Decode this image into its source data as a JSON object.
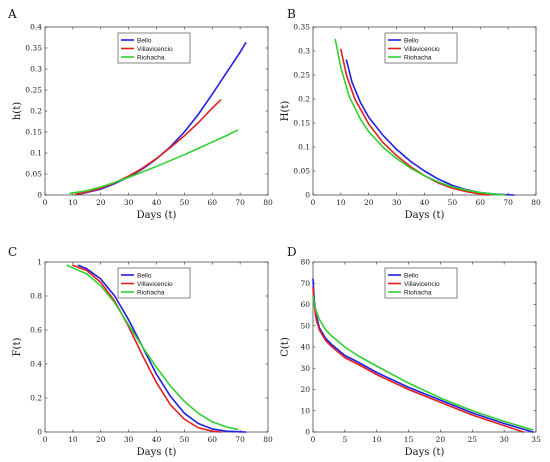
{
  "chart_data": [
    {
      "panel": "A",
      "type": "line",
      "xlabel": "Days (t)",
      "ylabel": "h(t)",
      "xlim": [
        0,
        80
      ],
      "ylim": [
        0,
        0.4
      ],
      "xticks": [
        "0",
        "10",
        "20",
        "30",
        "40",
        "50",
        "60",
        "70",
        "80"
      ],
      "yticks": [
        "0",
        "0.05",
        "0.1",
        "0.15",
        "0.2",
        "0.25",
        "0.3",
        "0.35",
        "0.4"
      ],
      "legend": "top-center",
      "series": [
        {
          "name": "Bello",
          "color": "#2020e0",
          "x": [
            12,
            15,
            20,
            25,
            30,
            35,
            40,
            45,
            50,
            55,
            60,
            65,
            70,
            72
          ],
          "y": [
            0.002,
            0.006,
            0.014,
            0.027,
            0.043,
            0.062,
            0.086,
            0.115,
            0.15,
            0.192,
            0.24,
            0.29,
            0.34,
            0.362
          ]
        },
        {
          "name": "Villavicencio",
          "color": "#e02020",
          "x": [
            11,
            15,
            20,
            25,
            30,
            35,
            40,
            45,
            50,
            55,
            60,
            63
          ],
          "y": [
            0.002,
            0.007,
            0.016,
            0.029,
            0.045,
            0.064,
            0.087,
            0.113,
            0.141,
            0.172,
            0.207,
            0.226
          ]
        },
        {
          "name": "Riohacha",
          "color": "#30d030",
          "x": [
            9,
            15,
            20,
            25,
            30,
            35,
            40,
            45,
            50,
            55,
            60,
            65,
            69
          ],
          "y": [
            0.004,
            0.01,
            0.019,
            0.03,
            0.042,
            0.055,
            0.068,
            0.082,
            0.096,
            0.111,
            0.126,
            0.141,
            0.154
          ]
        }
      ]
    },
    {
      "panel": "B",
      "type": "line",
      "xlabel": "Days (t)",
      "ylabel": "H(t)",
      "xlim": [
        0,
        80
      ],
      "ylim": [
        0,
        0.35
      ],
      "xticks": [
        "0",
        "10",
        "20",
        "30",
        "40",
        "50",
        "60",
        "70",
        "80"
      ],
      "yticks": [
        "0",
        "0.05",
        "0.1",
        "0.15",
        "0.2",
        "0.25",
        "0.3",
        "0.35"
      ],
      "legend": "top-center",
      "series": [
        {
          "name": "Bello",
          "color": "#2020e0",
          "x": [
            12,
            14,
            17,
            20,
            25,
            30,
            35,
            40,
            45,
            50,
            55,
            60,
            65,
            70,
            72
          ],
          "y": [
            0.281,
            0.235,
            0.193,
            0.162,
            0.125,
            0.095,
            0.07,
            0.05,
            0.033,
            0.02,
            0.011,
            0.005,
            0.002,
            0.0005,
            0.0
          ]
        },
        {
          "name": "Villavicencio",
          "color": "#e02020",
          "x": [
            10,
            12,
            15,
            20,
            25,
            30,
            35,
            40,
            45,
            50,
            55,
            60,
            63
          ],
          "y": [
            0.303,
            0.25,
            0.2,
            0.148,
            0.11,
            0.082,
            0.059,
            0.04,
            0.025,
            0.014,
            0.007,
            0.002,
            0.0
          ]
        },
        {
          "name": "Riohacha",
          "color": "#30d030",
          "x": [
            8,
            10,
            13,
            17,
            20,
            25,
            30,
            35,
            40,
            45,
            50,
            55,
            60,
            65,
            69
          ],
          "y": [
            0.324,
            0.265,
            0.205,
            0.158,
            0.132,
            0.1,
            0.076,
            0.056,
            0.04,
            0.027,
            0.017,
            0.01,
            0.005,
            0.002,
            0.0
          ]
        }
      ]
    },
    {
      "panel": "C",
      "type": "line",
      "xlabel": "Days (t)",
      "ylabel": "F(t)",
      "xlim": [
        0,
        80
      ],
      "ylim": [
        0,
        1
      ],
      "xticks": [
        "0",
        "10",
        "20",
        "30",
        "40",
        "50",
        "60",
        "70",
        "80"
      ],
      "yticks": [
        "0",
        "0.2",
        "0.4",
        "0.6",
        "0.8",
        "1"
      ],
      "legend": "top-center",
      "series": [
        {
          "name": "Bello",
          "color": "#2020e0",
          "x": [
            12,
            15,
            20,
            25,
            30,
            35,
            40,
            45,
            50,
            55,
            60,
            65,
            70,
            72
          ],
          "y": [
            0.98,
            0.96,
            0.9,
            0.8,
            0.66,
            0.5,
            0.34,
            0.21,
            0.11,
            0.05,
            0.018,
            0.005,
            0.001,
            0.0
          ]
        },
        {
          "name": "Villavicencio",
          "color": "#e02020",
          "x": [
            10,
            15,
            20,
            25,
            30,
            35,
            40,
            45,
            50,
            55,
            60,
            63
          ],
          "y": [
            0.98,
            0.95,
            0.88,
            0.77,
            0.62,
            0.45,
            0.29,
            0.16,
            0.075,
            0.025,
            0.005,
            0.0
          ]
        },
        {
          "name": "Riohacha",
          "color": "#30d030",
          "x": [
            8,
            10,
            15,
            20,
            25,
            30,
            35,
            40,
            45,
            50,
            55,
            60,
            65,
            69
          ],
          "y": [
            0.98,
            0.965,
            0.93,
            0.86,
            0.76,
            0.63,
            0.5,
            0.38,
            0.27,
            0.18,
            0.11,
            0.06,
            0.03,
            0.015
          ]
        }
      ]
    },
    {
      "panel": "D",
      "type": "line",
      "xlabel": "Days (t)",
      "ylabel": "C(t)",
      "xlim": [
        0,
        35
      ],
      "ylim": [
        0,
        80
      ],
      "xticks": [
        "0",
        "5",
        "10",
        "15",
        "20",
        "25",
        "30",
        "35"
      ],
      "yticks": [
        "0",
        "10",
        "20",
        "30",
        "40",
        "50",
        "60",
        "70",
        "80"
      ],
      "legend": "top-center",
      "series": [
        {
          "name": "Bello",
          "color": "#2020e0",
          "x": [
            0,
            0.2,
            0.5,
            1,
            2,
            3,
            5,
            7,
            10,
            15,
            20,
            25,
            30,
            34.5
          ],
          "y": [
            72,
            62,
            55,
            49,
            44,
            41,
            36,
            33,
            28,
            21,
            15,
            9,
            4,
            0
          ]
        },
        {
          "name": "Villavicencio",
          "color": "#e02020",
          "x": [
            0,
            0.2,
            0.5,
            1,
            2,
            3,
            5,
            7,
            10,
            15,
            20,
            25,
            30,
            33
          ],
          "y": [
            68,
            60,
            53,
            48,
            43,
            40,
            35,
            32,
            27,
            20,
            14,
            8,
            3,
            0
          ]
        },
        {
          "name": "Riohacha",
          "color": "#30d030",
          "x": [
            0,
            0.2,
            0.5,
            1,
            2,
            3,
            5,
            7,
            10,
            15,
            20,
            25,
            30,
            34.5
          ],
          "y": [
            64,
            60,
            57,
            53,
            48,
            45,
            40,
            36,
            31,
            23,
            16,
            10,
            5,
            1
          ]
        }
      ]
    }
  ]
}
